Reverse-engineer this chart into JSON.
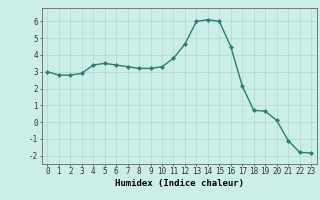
{
  "x": [
    0,
    1,
    2,
    3,
    4,
    5,
    6,
    7,
    8,
    9,
    10,
    11,
    12,
    13,
    14,
    15,
    16,
    17,
    18,
    19,
    20,
    21,
    22,
    23
  ],
  "y": [
    3.0,
    2.8,
    2.8,
    2.9,
    3.4,
    3.5,
    3.4,
    3.3,
    3.2,
    3.2,
    3.3,
    3.8,
    4.65,
    6.0,
    6.1,
    6.0,
    4.5,
    2.15,
    0.7,
    0.65,
    0.1,
    -1.1,
    -1.8,
    -1.85
  ],
  "line_color": "#2e7d6e",
  "marker": "D",
  "markersize": 2.0,
  "linewidth": 1.0,
  "xlabel": "Humidex (Indice chaleur)",
  "xlim": [
    -0.5,
    23.5
  ],
  "ylim": [
    -2.5,
    6.8
  ],
  "yticks": [
    -2,
    -1,
    0,
    1,
    2,
    3,
    4,
    5,
    6
  ],
  "xticks": [
    0,
    1,
    2,
    3,
    4,
    5,
    6,
    7,
    8,
    9,
    10,
    11,
    12,
    13,
    14,
    15,
    16,
    17,
    18,
    19,
    20,
    21,
    22,
    23
  ],
  "xtick_labels": [
    "0",
    "1",
    "2",
    "3",
    "4",
    "5",
    "6",
    "7",
    "8",
    "9",
    "10",
    "11",
    "12",
    "13",
    "14",
    "15",
    "16",
    "17",
    "18",
    "19",
    "20",
    "21",
    "22",
    "23"
  ],
  "bg_color": "#cceee8",
  "grid_color": "#b0d8d2",
  "tick_fontsize": 5.5,
  "xlabel_fontsize": 6.5,
  "xlabel_fontweight": "bold",
  "spine_color": "#666666"
}
